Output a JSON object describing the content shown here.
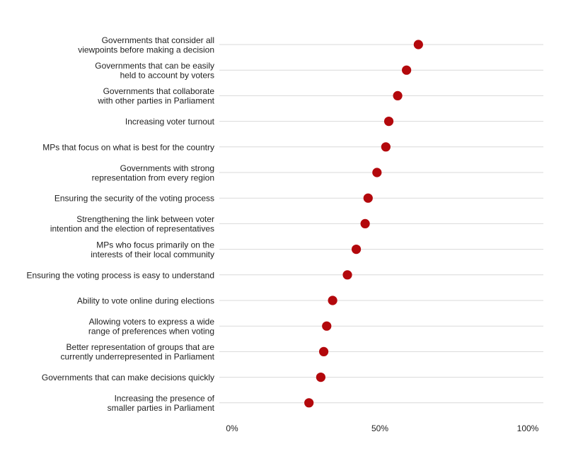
{
  "chart_data": {
    "type": "dot",
    "categories": [
      [
        "Governments that consider all",
        "viewpoints before making a decision"
      ],
      [
        "Governments that can be easily",
        "held to account by voters"
      ],
      [
        "Governments that collaborate",
        "with other parties in Parliament"
      ],
      [
        "Increasing voter turnout"
      ],
      [
        "MPs that focus on what is best for the country"
      ],
      [
        "Governments with strong",
        "representation from every region"
      ],
      [
        "Ensuring the security of the voting process"
      ],
      [
        "Strengthening the link between voter",
        "intention and the election of representatives"
      ],
      [
        "MPs who focus primarily on the",
        "interests of their local community"
      ],
      [
        "Ensuring the voting process is easy to understand"
      ],
      [
        "Ability to vote online during elections"
      ],
      [
        "Allowing voters to express a wide",
        "range of preferences when voting"
      ],
      [
        "Better representation of groups that are",
        "currently underrepresented in Parliament"
      ],
      [
        "Governments that can make decisions quickly"
      ],
      [
        "Increasing the presence of",
        "smaller parties in Parliament"
      ]
    ],
    "values": [
      63,
      59,
      56,
      53,
      52,
      49,
      46,
      45,
      42,
      39,
      34,
      32,
      31,
      30,
      26
    ],
    "xlim": [
      0,
      100
    ],
    "xticks": [
      0,
      50,
      100
    ],
    "xtick_labels": [
      "0%",
      "50%",
      "100%"
    ],
    "grid": true,
    "colors": {
      "dot": "#b3080c",
      "grid": "#d9d9d9",
      "text": "#222222"
    }
  }
}
